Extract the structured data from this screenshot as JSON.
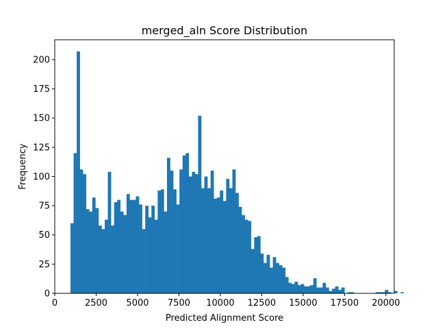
{
  "chart_data": {
    "type": "bar",
    "title": "merged_aln Score Distribution",
    "xlabel": "Predicted Alignment Score",
    "ylabel": "Frequency",
    "xlim": [
      0,
      20500
    ],
    "ylim": [
      0,
      217
    ],
    "xticks": [
      0,
      2500,
      5000,
      7500,
      10000,
      12500,
      15000,
      17500,
      20000
    ],
    "xtick_labels": [
      "0",
      "2500",
      "5000",
      "7500",
      "10000",
      "12500",
      "15000",
      "17500",
      "20000"
    ],
    "yticks": [
      0,
      25,
      50,
      75,
      100,
      125,
      150,
      175,
      200
    ],
    "ytick_labels": [
      "0",
      "25",
      "50",
      "75",
      "100",
      "125",
      "150",
      "175",
      "200"
    ],
    "bin_start": 950,
    "bin_width": 188,
    "values": [
      60,
      120,
      207,
      106,
      102,
      72,
      70,
      82,
      73,
      58,
      55,
      63,
      104,
      58,
      78,
      80,
      70,
      67,
      85,
      80,
      80,
      83,
      76,
      55,
      75,
      65,
      75,
      63,
      88,
      89,
      70,
      116,
      105,
      89,
      76,
      106,
      118,
      120,
      100,
      104,
      102,
      152,
      90,
      100,
      90,
      105,
      81,
      82,
      88,
      79,
      98,
      90,
      106,
      86,
      74,
      67,
      63,
      62,
      38,
      48,
      49,
      34,
      26,
      33,
      22,
      31,
      26,
      24,
      22,
      14,
      9,
      8,
      10,
      7,
      8,
      6,
      6,
      7,
      13,
      5,
      5,
      9,
      5,
      2,
      4,
      6,
      3,
      5,
      0,
      1,
      1,
      0,
      0,
      0,
      0,
      0,
      0,
      0,
      1,
      1,
      1,
      3,
      1,
      0,
      2,
      0,
      1
    ]
  }
}
